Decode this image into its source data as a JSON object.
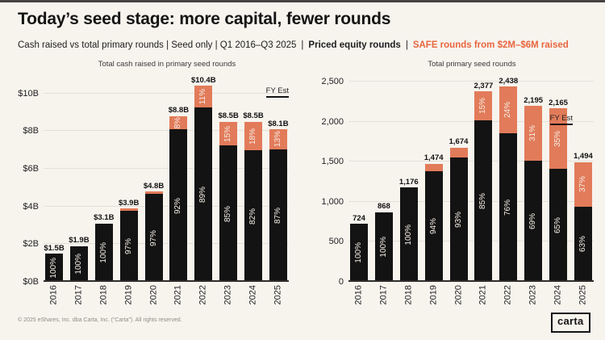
{
  "header": {
    "title": "Today’s seed stage: more capital, fewer rounds",
    "subtitle_left": "Cash raised vs total primary rounds | Seed only | Q1 2016–Q3 2025",
    "sep": "|",
    "legend_priced": "Priced equity rounds",
    "legend_safe": "SAFE rounds from $2M–$6M raised"
  },
  "colors": {
    "background": "#f7f4ee",
    "bar_black": "#131313",
    "bar_orange": "#e27b5a",
    "accent_text": "#e8663f",
    "gridline": "#e3e0d8",
    "baseline": "#2e2d2b"
  },
  "chart_data": [
    {
      "type": "bar",
      "stacked": true,
      "title": "Total cash raised in primary seed rounds",
      "categories": [
        "2016",
        "2017",
        "2018",
        "2019",
        "2020",
        "2021",
        "2022",
        "2023",
        "2024",
        "2025"
      ],
      "totals": [
        1.5,
        1.9,
        3.1,
        3.9,
        4.8,
        8.8,
        10.4,
        8.5,
        8.5,
        8.1
      ],
      "total_labels": [
        "$1.5B",
        "$1.9B",
        "$3.1B",
        "$3.9B",
        "$4.8B",
        "$8.8B",
        "$10.4B",
        "$8.5B",
        "$8.5B",
        "$8.1B"
      ],
      "series": [
        {
          "name": "Priced equity rounds",
          "color": "#131313",
          "pct": [
            100,
            100,
            100,
            97,
            97,
            92,
            89,
            85,
            82,
            87
          ],
          "pct_labels": [
            "100%",
            "100%",
            "100%",
            "97%",
            "97%",
            "92%",
            "89%",
            "85%",
            "82%",
            "87%"
          ]
        },
        {
          "name": "SAFE rounds from $2M–$6M raised",
          "color": "#e27b5a",
          "pct": [
            0,
            0,
            0,
            3,
            3,
            8,
            11,
            15,
            18,
            13
          ],
          "pct_labels": [
            "",
            "",
            "",
            "",
            "",
            "8%",
            "11%",
            "15%",
            "18%",
            "13%"
          ]
        }
      ],
      "ylim": [
        0,
        10.8
      ],
      "yticks": [
        {
          "value": 0,
          "label": "$0B"
        },
        {
          "value": 2,
          "label": "$2B"
        },
        {
          "value": 4,
          "label": "$4B"
        },
        {
          "value": 6,
          "label": "$6B"
        },
        {
          "value": 8,
          "label": "$8B"
        },
        {
          "value": 10,
          "label": "$10B"
        }
      ],
      "grid": true,
      "legend_position": "in-header",
      "fy_est": "FY Est"
    },
    {
      "type": "bar",
      "stacked": true,
      "title": "Total primary seed rounds",
      "categories": [
        "2016",
        "2017",
        "2018",
        "2019",
        "2020",
        "2021",
        "2022",
        "2023",
        "2024",
        "2025"
      ],
      "totals": [
        724,
        868,
        1176,
        1474,
        1674,
        2377,
        2438,
        2195,
        2165,
        1494
      ],
      "total_labels": [
        "724",
        "868",
        "1,176",
        "1,474",
        "1,674",
        "2,377",
        "2,438",
        "2,195",
        "2,165",
        "1,494"
      ],
      "series": [
        {
          "name": "Priced equity rounds",
          "color": "#131313",
          "pct": [
            100,
            100,
            100,
            94,
            93,
            85,
            76,
            69,
            65,
            63
          ],
          "pct_labels": [
            "100%",
            "100%",
            "100%",
            "94%",
            "93%",
            "85%",
            "76%",
            "69%",
            "65%",
            "63%"
          ]
        },
        {
          "name": "SAFE rounds from $2M–$6M raised",
          "color": "#e27b5a",
          "pct": [
            0,
            0,
            0,
            6,
            7,
            15,
            24,
            31,
            35,
            37
          ],
          "pct_labels": [
            "",
            "",
            "",
            "",
            "",
            "15%",
            "24%",
            "31%",
            "35%",
            "37%"
          ]
        }
      ],
      "ylim": [
        0,
        2540
      ],
      "yticks": [
        {
          "value": 0,
          "label": "0"
        },
        {
          "value": 500,
          "label": "500"
        },
        {
          "value": 1000,
          "label": "1,000"
        },
        {
          "value": 1500,
          "label": "1,500"
        },
        {
          "value": 2000,
          "label": "2,000"
        },
        {
          "value": 2500,
          "label": "2,500"
        }
      ],
      "grid": true,
      "legend_position": "in-header",
      "fy_est": "FY Est"
    }
  ],
  "footer": {
    "copyright": "© 2025 eShares, Inc. dba Carta, Inc. (“Carta”). All rights reserved.",
    "logo_text": "carta"
  }
}
